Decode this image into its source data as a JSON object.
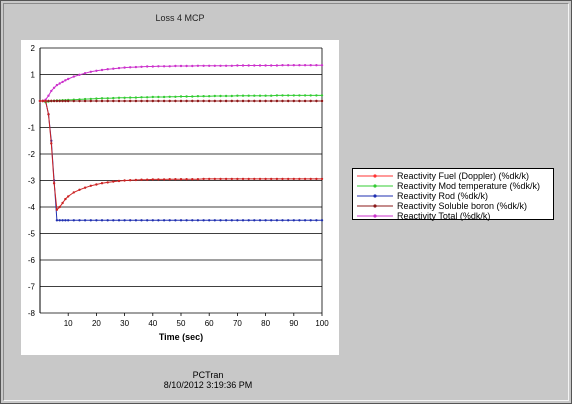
{
  "chart_title": "Loss 4 MCP",
  "footer": {
    "app": "PCTran",
    "datetime": "8/10/2012 3:19:36 PM"
  },
  "chart_data": {
    "type": "line",
    "title": "Loss 4 MCP",
    "xlabel": "Time (sec)",
    "ylabel": "",
    "xlim": [
      0,
      100
    ],
    "ylim": [
      -8,
      2
    ],
    "xticks": [
      10,
      20,
      30,
      40,
      50,
      60,
      70,
      80,
      90,
      100
    ],
    "yticks": [
      2,
      1,
      0,
      -1,
      -2,
      -3,
      -4,
      -5,
      -6,
      -7,
      -8
    ],
    "grid": "horizontal",
    "legend_position": "right",
    "x": [
      0,
      1,
      2,
      3,
      4,
      5,
      6,
      7,
      8,
      9,
      10,
      12,
      14,
      16,
      18,
      20,
      22,
      24,
      26,
      28,
      30,
      32,
      34,
      36,
      38,
      40,
      42,
      44,
      46,
      48,
      50,
      52,
      54,
      56,
      58,
      60,
      62,
      64,
      66,
      68,
      70,
      72,
      74,
      76,
      78,
      80,
      82,
      84,
      86,
      88,
      90,
      92,
      94,
      96,
      98,
      100
    ],
    "series": [
      {
        "name": "Reactivity Fuel (Doppler) (%dk/k)",
        "color": "#ff3333",
        "marker": "dot",
        "values": [
          0,
          0,
          0,
          0,
          0,
          0,
          0,
          0,
          0,
          0,
          0,
          0,
          0,
          0,
          0,
          0,
          0,
          0,
          0,
          0,
          0,
          0,
          0,
          0,
          0,
          0,
          0,
          0,
          0,
          0,
          0,
          0,
          0,
          0,
          0,
          0,
          0,
          0,
          0,
          0,
          0,
          0,
          0,
          0,
          0,
          0,
          0,
          0,
          0,
          0,
          0,
          0,
          0,
          0,
          0,
          0
        ]
      },
      {
        "name": "Reactivity Mod temperature (%dk/k)",
        "color": "#33cc33",
        "marker": "dot",
        "values": [
          0,
          0,
          -0.05,
          -0.02,
          0,
          0.01,
          0.02,
          0.02,
          0.03,
          0.03,
          0.04,
          0.05,
          0.06,
          0.07,
          0.08,
          0.09,
          0.1,
          0.1,
          0.11,
          0.12,
          0.12,
          0.13,
          0.13,
          0.14,
          0.14,
          0.15,
          0.15,
          0.15,
          0.16,
          0.16,
          0.17,
          0.17,
          0.17,
          0.18,
          0.18,
          0.18,
          0.19,
          0.19,
          0.19,
          0.19,
          0.2,
          0.2,
          0.2,
          0.2,
          0.2,
          0.2,
          0.2,
          0.21,
          0.21,
          0.21,
          0.21,
          0.21,
          0.21,
          0.21,
          0.21,
          0.21
        ]
      },
      {
        "name": "Reactivity Rod (%dk/k)",
        "color": "#1f2fb0",
        "marker": "dot",
        "values": [
          0,
          0,
          0,
          -0.5,
          -1.5,
          -3.0,
          -4.5,
          -4.5,
          -4.5,
          -4.5,
          -4.5,
          -4.5,
          -4.5,
          -4.5,
          -4.5,
          -4.5,
          -4.5,
          -4.5,
          -4.5,
          -4.5,
          -4.5,
          -4.5,
          -4.5,
          -4.5,
          -4.5,
          -4.5,
          -4.5,
          -4.5,
          -4.5,
          -4.5,
          -4.5,
          -4.5,
          -4.5,
          -4.5,
          -4.5,
          -4.5,
          -4.5,
          -4.5,
          -4.5,
          -4.5,
          -4.5,
          -4.5,
          -4.5,
          -4.5,
          -4.5,
          -4.5,
          -4.5,
          -4.5,
          -4.5,
          -4.5,
          -4.5,
          -4.5,
          -4.5,
          -4.5,
          -4.5,
          -4.5
        ]
      },
      {
        "name": "Reactivity Soluble boron (%dk/k)",
        "color": "#8b1a1a",
        "marker": "dot",
        "values": [
          0,
          0,
          0,
          0,
          0,
          0,
          0,
          0,
          0,
          0,
          0,
          0,
          0,
          0,
          0,
          0,
          0,
          0,
          0,
          0,
          0,
          0,
          0,
          0,
          0,
          0,
          0,
          0,
          0,
          0,
          0,
          0,
          0,
          0,
          0,
          0,
          0,
          0,
          0,
          0,
          0,
          0,
          0,
          0,
          0,
          0,
          0,
          0,
          0,
          0,
          0,
          0,
          0,
          0,
          0,
          0
        ]
      },
      {
        "name": "Reactivity Total (%dk/k)",
        "color": "#cc33cc",
        "marker": "dot",
        "values": [
          0,
          0,
          0.05,
          0.2,
          0.38,
          0.5,
          0.6,
          0.66,
          0.72,
          0.78,
          0.83,
          0.92,
          0.99,
          1.05,
          1.1,
          1.14,
          1.17,
          1.2,
          1.22,
          1.24,
          1.26,
          1.27,
          1.28,
          1.29,
          1.3,
          1.3,
          1.31,
          1.31,
          1.31,
          1.32,
          1.32,
          1.32,
          1.32,
          1.33,
          1.33,
          1.33,
          1.33,
          1.33,
          1.33,
          1.33,
          1.34,
          1.34,
          1.34,
          1.34,
          1.34,
          1.34,
          1.34,
          1.34,
          1.35,
          1.35,
          1.35,
          1.35,
          1.35,
          1.35,
          1.35,
          1.35
        ]
      },
      {
        "name": "",
        "color": "#cc2222",
        "marker": "dot",
        "legend": false,
        "values": [
          0,
          0,
          0,
          -0.5,
          -1.6,
          -3.1,
          -4.1,
          -4.0,
          -3.85,
          -3.7,
          -3.6,
          -3.45,
          -3.35,
          -3.27,
          -3.2,
          -3.15,
          -3.1,
          -3.07,
          -3.04,
          -3.02,
          -3.0,
          -2.99,
          -2.98,
          -2.97,
          -2.97,
          -2.96,
          -2.96,
          -2.96,
          -2.95,
          -2.95,
          -2.95,
          -2.95,
          -2.95,
          -2.95,
          -2.94,
          -2.94,
          -2.94,
          -2.94,
          -2.94,
          -2.94,
          -2.94,
          -2.94,
          -2.94,
          -2.94,
          -2.94,
          -2.94,
          -2.94,
          -2.94,
          -2.94,
          -2.94,
          -2.94,
          -2.94,
          -2.94,
          -2.94,
          -2.94,
          -2.94
        ]
      }
    ]
  }
}
